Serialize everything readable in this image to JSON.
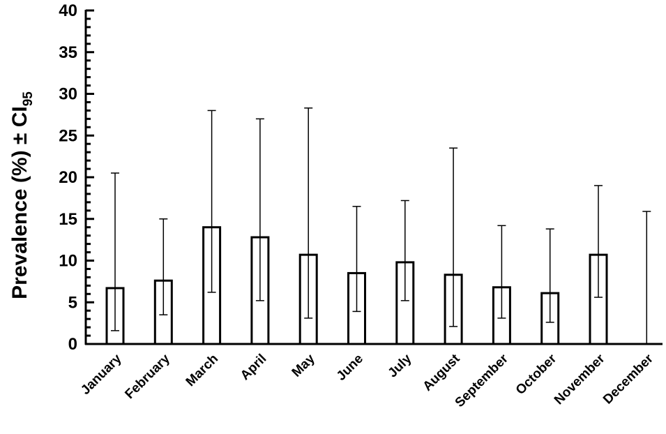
{
  "chart_data": {
    "type": "bar",
    "title": "",
    "xlabel": "",
    "ylabel": "Prevalence (%) ± CI",
    "ylabel_subscript": "95",
    "ylim": [
      0,
      40
    ],
    "yticks": [
      0,
      5,
      10,
      15,
      20,
      25,
      30,
      35,
      40
    ],
    "y_minor_step": 1,
    "grid": false,
    "legend": "none",
    "categories": [
      "January",
      "February",
      "March",
      "April",
      "May",
      "June",
      "July",
      "August",
      "September",
      "October",
      "November",
      "December"
    ],
    "values": [
      6.7,
      7.6,
      14.0,
      12.8,
      10.7,
      8.5,
      9.8,
      8.3,
      6.8,
      6.1,
      10.7,
      0
    ],
    "ci_lower": [
      1.6,
      3.5,
      6.2,
      5.2,
      3.1,
      3.9,
      5.2,
      2.1,
      3.1,
      2.6,
      5.6,
      0
    ],
    "ci_upper": [
      20.5,
      15.0,
      28.0,
      27.0,
      28.3,
      16.5,
      17.2,
      23.5,
      14.2,
      13.8,
      19.0,
      15.9
    ],
    "colors": {
      "bar_fill": "#ffffff",
      "stroke": "#000000"
    }
  }
}
